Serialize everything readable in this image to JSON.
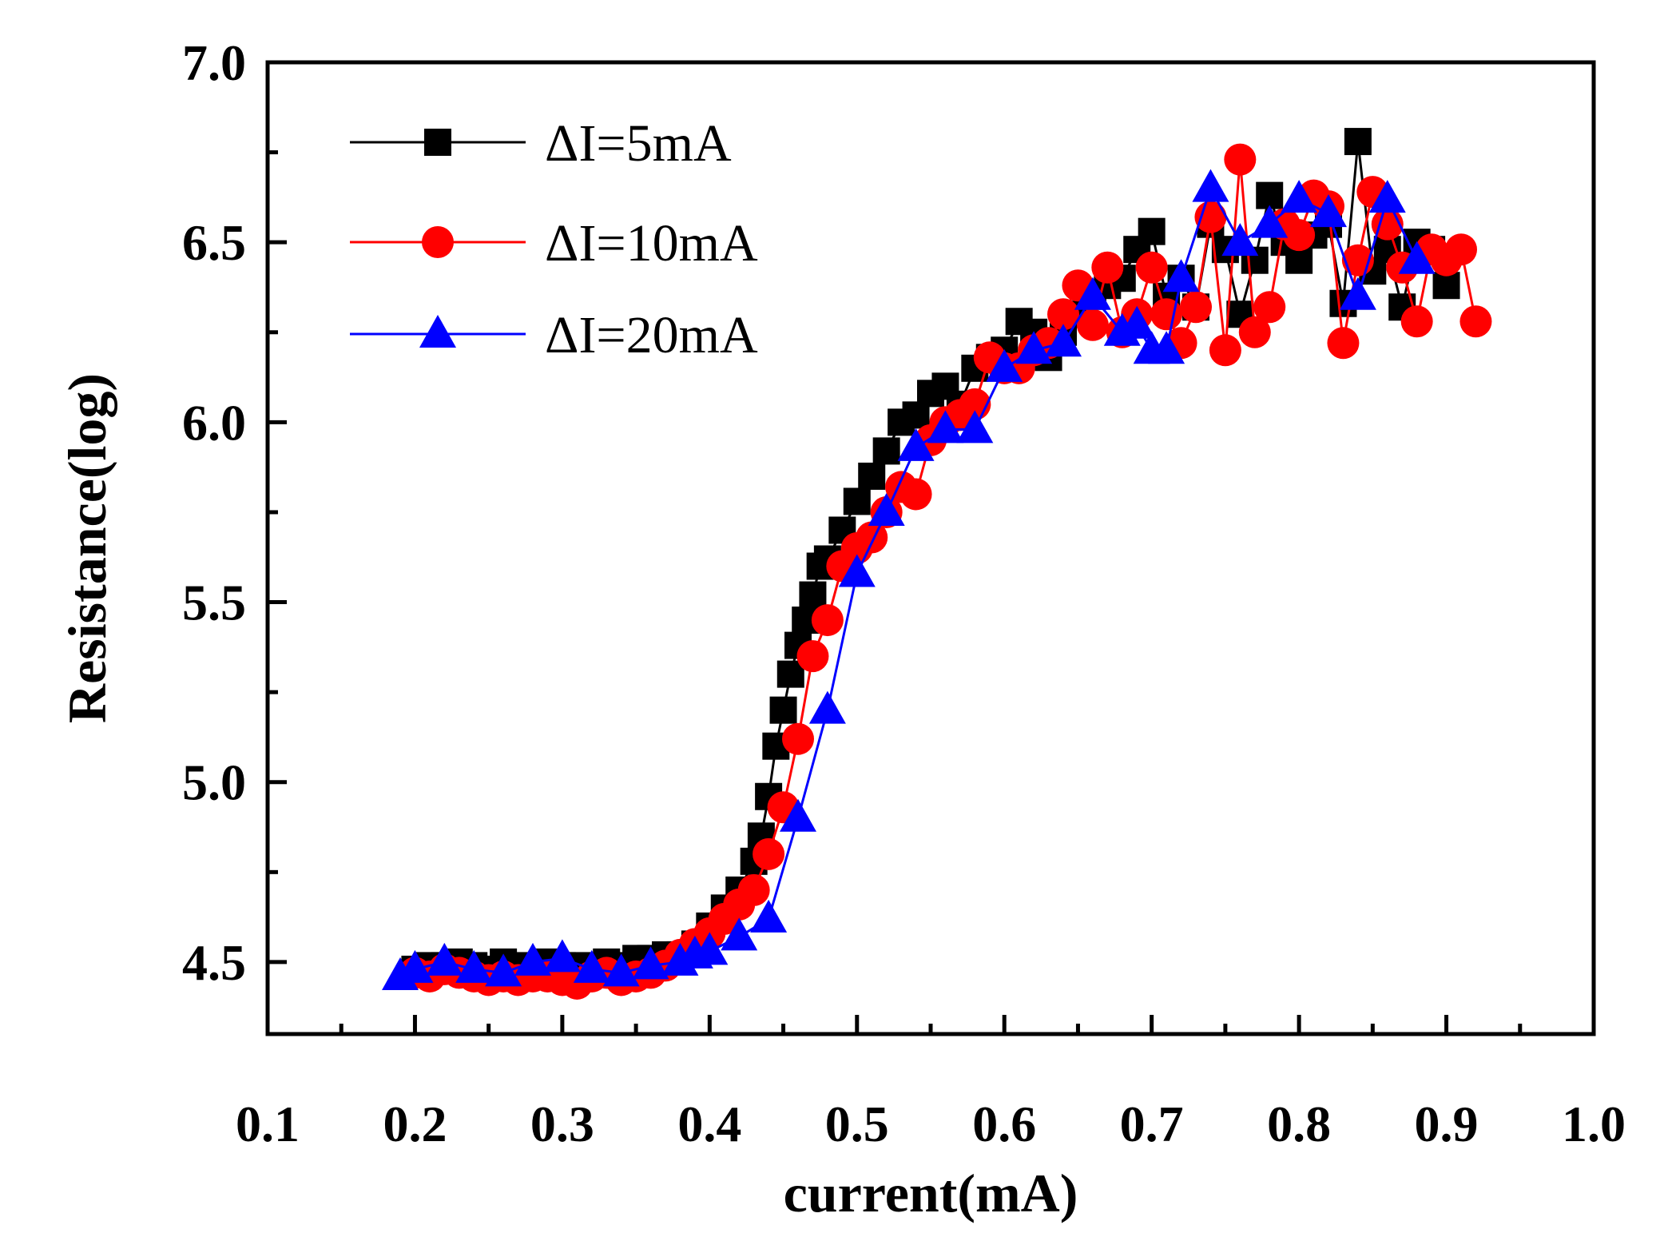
{
  "chart_data": {
    "type": "scatter",
    "title": "",
    "xlabel": "current(mA)",
    "ylabel": "Resistance(log)",
    "xlim": [
      0.1,
      1.0
    ],
    "ylim": [
      4.3,
      7.0
    ],
    "x_major_ticks": [
      0.1,
      0.2,
      0.3,
      0.4,
      0.5,
      0.6,
      0.7,
      0.8,
      0.9,
      1.0
    ],
    "x_tick_labels": [
      "0.1",
      "0.2",
      "0.3",
      "0.4",
      "0.5",
      "0.6",
      "0.7",
      "0.8",
      "0.9",
      "1.0"
    ],
    "y_major_ticks": [
      4.5,
      5.0,
      5.5,
      6.0,
      6.5,
      7.0
    ],
    "y_tick_labels": [
      "4.5",
      "5.0",
      "5.5",
      "6.0",
      "6.5",
      "7.0"
    ],
    "grid": false,
    "legend_position": "top-left",
    "series": [
      {
        "name": "ΔI=5mA",
        "color": "#000000",
        "marker": "square",
        "x": [
          0.2,
          0.21,
          0.22,
          0.23,
          0.24,
          0.25,
          0.26,
          0.27,
          0.28,
          0.29,
          0.3,
          0.31,
          0.32,
          0.33,
          0.34,
          0.35,
          0.36,
          0.37,
          0.38,
          0.39,
          0.4,
          0.41,
          0.42,
          0.43,
          0.435,
          0.44,
          0.445,
          0.45,
          0.455,
          0.46,
          0.465,
          0.47,
          0.475,
          0.48,
          0.49,
          0.5,
          0.51,
          0.52,
          0.53,
          0.54,
          0.55,
          0.56,
          0.57,
          0.58,
          0.59,
          0.6,
          0.61,
          0.62,
          0.63,
          0.64,
          0.65,
          0.66,
          0.67,
          0.68,
          0.69,
          0.7,
          0.71,
          0.72,
          0.73,
          0.74,
          0.75,
          0.76,
          0.77,
          0.78,
          0.79,
          0.8,
          0.81,
          0.82,
          0.83,
          0.84,
          0.85,
          0.86,
          0.87,
          0.88,
          0.89,
          0.9
        ],
        "values": [
          4.48,
          4.49,
          4.49,
          4.5,
          4.49,
          4.48,
          4.5,
          4.49,
          4.48,
          4.5,
          4.49,
          4.49,
          4.48,
          4.5,
          4.49,
          4.51,
          4.51,
          4.52,
          4.52,
          4.55,
          4.6,
          4.65,
          4.7,
          4.78,
          4.85,
          4.96,
          5.1,
          5.2,
          5.3,
          5.38,
          5.45,
          5.52,
          5.6,
          5.62,
          5.7,
          5.78,
          5.85,
          5.92,
          6.0,
          6.02,
          6.08,
          6.1,
          6.05,
          6.15,
          6.18,
          6.2,
          6.28,
          6.25,
          6.18,
          6.25,
          6.3,
          6.35,
          6.38,
          6.4,
          6.48,
          6.53,
          6.35,
          6.4,
          6.32,
          6.55,
          6.48,
          6.3,
          6.45,
          6.63,
          6.5,
          6.45,
          6.52,
          6.55,
          6.33,
          6.78,
          6.42,
          6.48,
          6.32,
          6.5,
          6.48,
          6.38
        ]
      },
      {
        "name": "ΔI=10mA",
        "color": "#ff0000",
        "marker": "circle",
        "x": [
          0.2,
          0.21,
          0.22,
          0.23,
          0.24,
          0.25,
          0.26,
          0.27,
          0.28,
          0.29,
          0.3,
          0.31,
          0.32,
          0.33,
          0.34,
          0.35,
          0.36,
          0.37,
          0.38,
          0.39,
          0.4,
          0.41,
          0.42,
          0.43,
          0.44,
          0.45,
          0.46,
          0.47,
          0.48,
          0.49,
          0.5,
          0.51,
          0.52,
          0.53,
          0.54,
          0.55,
          0.56,
          0.57,
          0.58,
          0.59,
          0.6,
          0.61,
          0.62,
          0.63,
          0.64,
          0.65,
          0.66,
          0.67,
          0.68,
          0.69,
          0.7,
          0.71,
          0.72,
          0.73,
          0.74,
          0.75,
          0.76,
          0.77,
          0.78,
          0.79,
          0.8,
          0.81,
          0.82,
          0.83,
          0.84,
          0.85,
          0.86,
          0.87,
          0.88,
          0.89,
          0.9,
          0.91,
          0.92
        ],
        "values": [
          4.47,
          4.46,
          4.48,
          4.47,
          4.46,
          4.45,
          4.46,
          4.45,
          4.46,
          4.46,
          4.45,
          4.44,
          4.46,
          4.47,
          4.45,
          4.46,
          4.47,
          4.49,
          4.52,
          4.55,
          4.58,
          4.62,
          4.66,
          4.7,
          4.8,
          4.93,
          5.12,
          5.35,
          5.45,
          5.6,
          5.65,
          5.68,
          5.75,
          5.82,
          5.8,
          5.95,
          6.0,
          6.02,
          6.05,
          6.18,
          6.15,
          6.15,
          6.2,
          6.22,
          6.3,
          6.38,
          6.27,
          6.43,
          6.25,
          6.3,
          6.43,
          6.3,
          6.22,
          6.32,
          6.57,
          6.2,
          6.73,
          6.25,
          6.32,
          6.55,
          6.52,
          6.63,
          6.6,
          6.22,
          6.45,
          6.64,
          6.55,
          6.43,
          6.28,
          6.48,
          6.45,
          6.48,
          6.28
        ]
      },
      {
        "name": "ΔI=20mA",
        "color": "#0000ff",
        "marker": "triangle",
        "x": [
          0.19,
          0.2,
          0.22,
          0.24,
          0.26,
          0.28,
          0.3,
          0.32,
          0.34,
          0.36,
          0.38,
          0.39,
          0.4,
          0.42,
          0.44,
          0.46,
          0.48,
          0.5,
          0.52,
          0.54,
          0.56,
          0.58,
          0.6,
          0.62,
          0.64,
          0.66,
          0.68,
          0.69,
          0.7,
          0.71,
          0.72,
          0.74,
          0.76,
          0.78,
          0.8,
          0.82,
          0.84,
          0.86,
          0.88
        ],
        "values": [
          4.46,
          4.48,
          4.5,
          4.48,
          4.47,
          4.5,
          4.51,
          4.48,
          4.47,
          4.49,
          4.5,
          4.52,
          4.53,
          4.57,
          4.62,
          4.9,
          5.2,
          5.58,
          5.75,
          5.93,
          5.98,
          5.98,
          6.15,
          6.2,
          6.22,
          6.35,
          6.25,
          6.27,
          6.2,
          6.2,
          6.4,
          6.65,
          6.5,
          6.55,
          6.62,
          6.58,
          6.35,
          6.62,
          6.45
        ]
      }
    ]
  }
}
